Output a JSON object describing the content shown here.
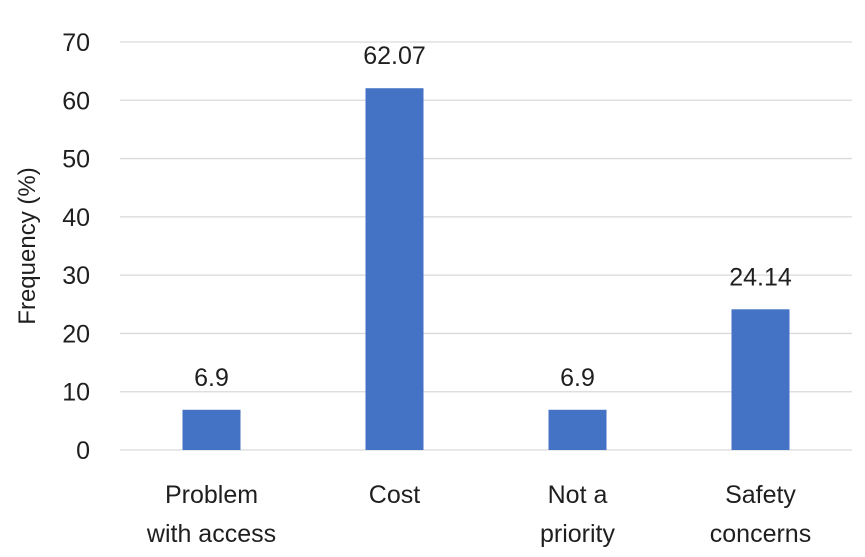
{
  "chart_data": {
    "type": "bar",
    "categories": [
      [
        "Problem",
        "with access"
      ],
      [
        "Cost"
      ],
      [
        "Not a",
        "priority"
      ],
      [
        "Safety",
        "concerns"
      ]
    ],
    "values": [
      6.9,
      62.07,
      6.9,
      24.14
    ],
    "data_labels": [
      "6.9",
      "62.07",
      "6.9",
      "24.14"
    ],
    "ylabel": "Frequency (%)",
    "ylim": [
      0,
      70
    ],
    "yticks": [
      "0",
      "10",
      "20",
      "30",
      "40",
      "50",
      "60",
      "70"
    ],
    "grid": true,
    "bar_color": "#4472C4"
  }
}
